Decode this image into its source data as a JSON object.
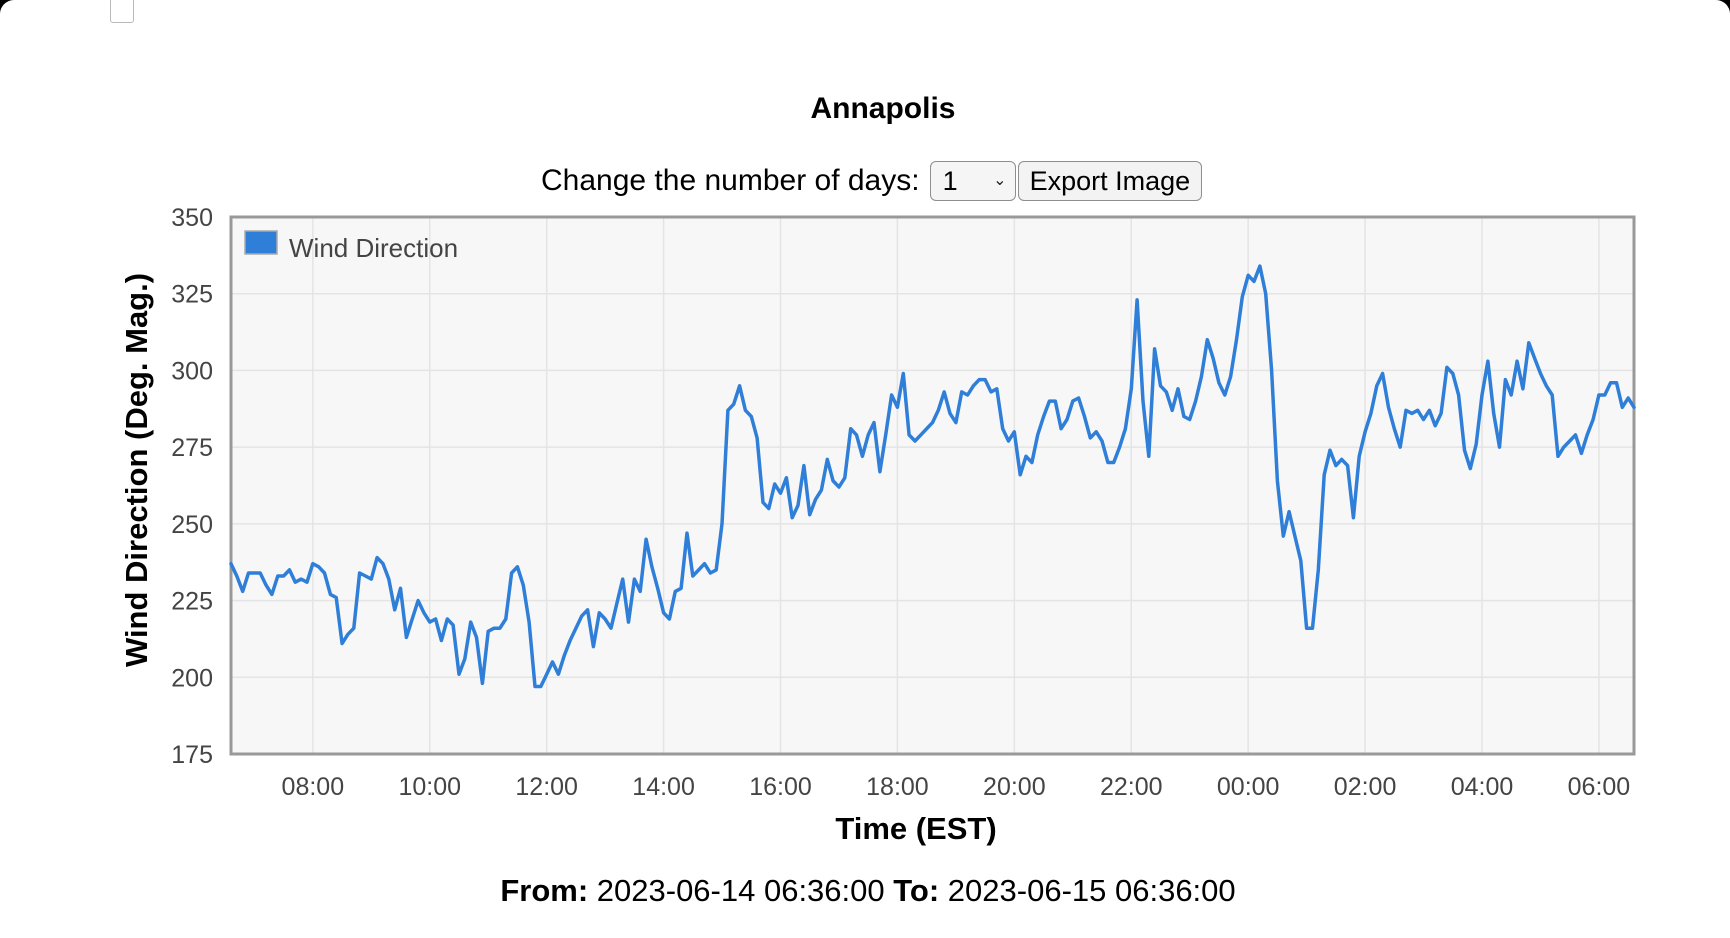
{
  "title": "Annapolis",
  "controls": {
    "days_label": "Change the number of days:",
    "days_value": "1",
    "export_label": "Export Image"
  },
  "range": {
    "from_label": "From:",
    "from_value": "2023-06-14 06:36:00",
    "to_label": "To:",
    "to_value": "2023-06-15 06:36:00"
  },
  "chart_data": {
    "type": "line",
    "xlabel": "Time (EST)",
    "ylabel": "Wind Direction (Deg. Mag.)",
    "ylim": [
      175,
      350
    ],
    "yticks": [
      175,
      200,
      225,
      250,
      275,
      300,
      325,
      350
    ],
    "xticks": [
      "08:00",
      "10:00",
      "12:00",
      "14:00",
      "16:00",
      "18:00",
      "20:00",
      "22:00",
      "00:00",
      "02:00",
      "04:00",
      "06:00"
    ],
    "legend": "top-left",
    "grid": true,
    "color": "#2f7ed8",
    "series": [
      {
        "name": "Wind Direction",
        "x_start": "2023-06-14 06:36",
        "x_step_minutes": 6,
        "values": [
          237,
          233,
          228,
          234,
          234,
          234,
          230,
          227,
          233,
          233,
          235,
          231,
          232,
          231,
          237,
          236,
          234,
          227,
          226,
          211,
          214,
          216,
          234,
          233,
          232,
          239,
          237,
          232,
          222,
          229,
          213,
          219,
          225,
          221,
          218,
          219,
          212,
          219,
          217,
          201,
          206,
          218,
          213,
          198,
          215,
          216,
          216,
          219,
          234,
          236,
          230,
          218,
          197,
          197,
          201,
          205,
          201,
          207,
          212,
          216,
          220,
          222,
          210,
          221,
          219,
          216,
          224,
          232,
          218,
          232,
          228,
          245,
          236,
          229,
          221,
          219,
          228,
          229,
          247,
          233,
          235,
          237,
          234,
          235,
          250,
          287,
          289,
          295,
          287,
          285,
          278,
          257,
          255,
          263,
          260,
          265,
          252,
          256,
          269,
          253,
          258,
          261,
          271,
          264,
          262,
          265,
          281,
          279,
          272,
          279,
          283,
          267,
          279,
          292,
          288,
          299,
          279,
          277,
          279,
          281,
          283,
          287,
          293,
          286,
          283,
          293,
          292,
          295,
          297,
          297,
          293,
          294,
          281,
          277,
          280,
          266,
          272,
          270,
          279,
          285,
          290,
          290,
          281,
          284,
          290,
          291,
          285,
          278,
          280,
          277,
          270,
          270,
          275,
          281,
          294,
          323,
          290,
          272,
          307,
          295,
          293,
          287,
          294,
          285,
          284,
          290,
          298,
          310,
          304,
          296,
          292,
          298,
          310,
          324,
          331,
          329,
          334,
          325,
          300,
          264,
          246,
          254,
          246,
          238,
          216,
          216,
          235,
          266,
          274,
          269,
          271,
          269,
          252,
          272,
          280,
          286,
          295,
          299,
          288,
          281,
          275,
          287,
          286,
          287,
          284,
          287,
          282,
          286,
          301,
          299,
          292,
          274,
          268,
          276,
          292,
          303,
          286,
          275,
          297,
          292,
          303,
          294,
          309,
          304,
          299,
          295,
          292,
          272,
          275,
          277,
          279,
          273,
          279,
          284,
          292,
          292,
          296,
          296,
          288,
          291,
          288
        ]
      }
    ]
  }
}
